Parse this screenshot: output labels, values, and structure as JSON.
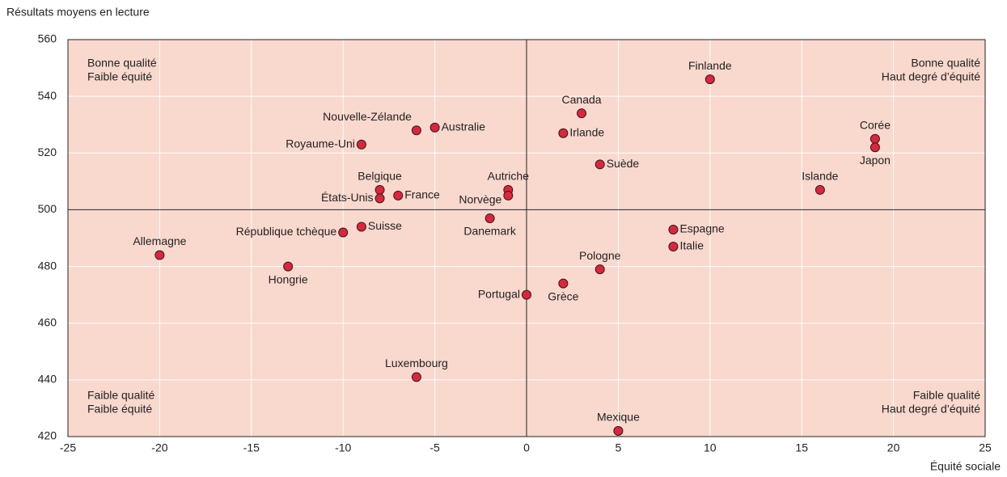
{
  "chart_data": {
    "type": "scatter",
    "ylabel": "Résultats moyens en lecture",
    "xlabel": "Équité sociale",
    "names": [
      "Finlande",
      "Canada",
      "Irlande",
      "Corée",
      "Japon",
      "Nouvelle-Zélande",
      "Australie",
      "Royaume-Uni",
      "Suède",
      "Islande",
      "Belgique",
      "États-Unis",
      "France",
      "Autriche",
      "Norvège",
      "Danemark",
      "Suisse",
      "République tchèque",
      "Espagne",
      "Italie",
      "Allemagne",
      "Hongrie",
      "Pologne",
      "Grèce",
      "Portugal",
      "Luxembourg",
      "Mexique"
    ],
    "x": [
      10,
      3,
      2,
      19,
      19,
      -6,
      -5,
      -9,
      4,
      16,
      -8,
      -8,
      -7,
      -1,
      -1,
      -2,
      -9,
      -10,
      8,
      8,
      -20,
      -13,
      4,
      2,
      0,
      -6,
      5
    ],
    "values": [
      546,
      534,
      527,
      525,
      522,
      528,
      529,
      523,
      516,
      507,
      507,
      504,
      505,
      507,
      505,
      497,
      494,
      492,
      493,
      487,
      484,
      480,
      479,
      474,
      470,
      441,
      422
    ],
    "color": "#e2233a",
    "background": "#f9d8cd",
    "xlim": [
      -25,
      25
    ],
    "xticks": [
      -25,
      -20,
      -15,
      -10,
      -5,
      0,
      5,
      10,
      15,
      20,
      25
    ],
    "ylim": [
      420,
      560
    ],
    "yticks": [
      420,
      440,
      460,
      480,
      500,
      520,
      540,
      560
    ],
    "grid": true,
    "hlines": [
      500
    ],
    "vlines": [
      0
    ],
    "annotations": [
      {
        "corner": "top-left",
        "lines": [
          "Bonne qualité",
          "Faible équité"
        ]
      },
      {
        "corner": "top-right",
        "lines": [
          "Bonne qualité",
          "Haut degré d’équité"
        ]
      },
      {
        "corner": "bottom-left",
        "lines": [
          "Faible qualité",
          "Faible équité"
        ]
      },
      {
        "corner": "bottom-right",
        "lines": [
          "Faible qualité",
          "Haut degré d’équité"
        ]
      }
    ]
  }
}
